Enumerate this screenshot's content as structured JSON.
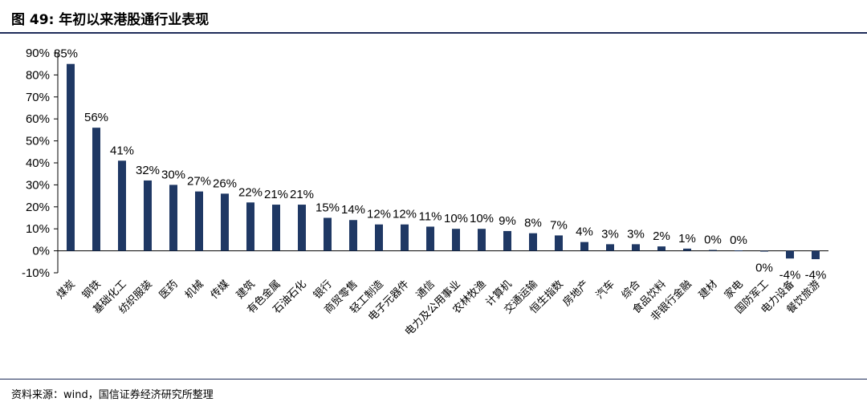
{
  "figure": {
    "title": "图 49:  年初以来港股通行业表现",
    "source": "资料来源：wind，国信证券经济研究所整理"
  },
  "chart_data": {
    "type": "bar",
    "categories": [
      "煤炭",
      "钢铁",
      "基础化工",
      "纺织服装",
      "医药",
      "机械",
      "传媒",
      "建筑",
      "有色金属",
      "石油石化",
      "银行",
      "商贸零售",
      "轻工制造",
      "电子元器件",
      "通信",
      "电力及公用事业",
      "农林牧渔",
      "计算机",
      "交通运输",
      "恒生指数",
      "房地产",
      "汽车",
      "综合",
      "食品饮料",
      "非银行金融",
      "建材",
      "家电",
      "国防军工",
      "电力设备",
      "餐饮旅游"
    ],
    "values": [
      85,
      56,
      41,
      32,
      30,
      27,
      26,
      22,
      21,
      21,
      15,
      14,
      12,
      12,
      11,
      10,
      10,
      9,
      8,
      7,
      4,
      3,
      3,
      2,
      1,
      0.4,
      0.2,
      -0.3,
      -3.5,
      -3.8
    ],
    "data_labels": [
      "85%",
      "56%",
      "41%",
      "32%",
      "30%",
      "27%",
      "26%",
      "22%",
      "21%",
      "21%",
      "15%",
      "14%",
      "12%",
      "12%",
      "11%",
      "10%",
      "10%",
      "9%",
      "8%",
      "7%",
      "4%",
      "3%",
      "3%",
      "2%",
      "1%",
      "0%",
      "0%",
      "0%",
      "-4%",
      "-4%"
    ],
    "y_ticks": [
      90,
      80,
      70,
      60,
      50,
      40,
      30,
      20,
      10,
      0,
      -10
    ],
    "y_tick_labels": [
      "90%",
      "80%",
      "70%",
      "60%",
      "50%",
      "40%",
      "30%",
      "20%",
      "10%",
      "0%",
      "-10%"
    ],
    "ylim": [
      -10,
      90
    ],
    "xlabel": "",
    "ylabel": "",
    "grid": false,
    "legend": "none",
    "bar_color": "#1f3864"
  }
}
